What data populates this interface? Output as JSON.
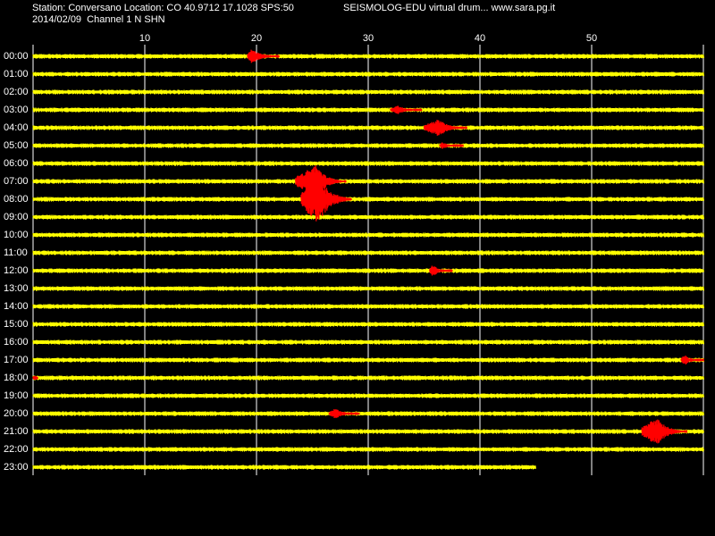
{
  "header": {
    "station_line": "Station: Conversano Location: CO 40.9712 17.1028 SPS:50",
    "date_line": "2014/02/09  Channel 1 N SHN",
    "app_title": "SEISMOLOG-EDU virtual drum... www.sara.pg.it"
  },
  "minute_axis": {
    "ticks": [
      10,
      20,
      30,
      40,
      50
    ],
    "range": [
      0,
      60
    ]
  },
  "hour_rows": [
    "00:00",
    "01:00",
    "02:00",
    "03:00",
    "04:00",
    "05:00",
    "06:00",
    "07:00",
    "08:00",
    "09:00",
    "10:00",
    "11:00",
    "12:00",
    "13:00",
    "14:00",
    "15:00",
    "16:00",
    "17:00",
    "18:00",
    "19:00",
    "20:00",
    "21:00",
    "22:00",
    "23:00"
  ],
  "trace_end_last_row_minute": 45,
  "events": [
    {
      "hour": 0,
      "start": 19.2,
      "end": 22.0,
      "peak": 19.6,
      "amp": 9
    },
    {
      "hour": 3,
      "start": 32.0,
      "end": 34.8,
      "peak": 32.6,
      "amp": 5
    },
    {
      "hour": 4,
      "start": 35.0,
      "end": 38.8,
      "peak": 36.3,
      "amp": 10
    },
    {
      "hour": 5,
      "start": 36.4,
      "end": 38.5,
      "peak": 36.6,
      "amp": 4
    },
    {
      "hour": 7,
      "start": 23.5,
      "end": 28.0,
      "peak": 25.3,
      "amp": 18
    },
    {
      "hour": 8,
      "start": 24.0,
      "end": 28.5,
      "peak": 25.5,
      "amp": 28
    },
    {
      "hour": 12,
      "start": 35.5,
      "end": 37.5,
      "peak": 35.7,
      "amp": 7
    },
    {
      "hour": 17,
      "start": 58.0,
      "end": 60.0,
      "peak": 58.3,
      "amp": 6
    },
    {
      "hour": 18,
      "start": 0.0,
      "end": 0.4,
      "peak": 0.1,
      "amp": 3
    },
    {
      "hour": 20,
      "start": 26.5,
      "end": 29.2,
      "peak": 27.0,
      "amp": 6
    },
    {
      "hour": 21,
      "start": 54.5,
      "end": 58.5,
      "peak": 55.8,
      "amp": 16
    }
  ],
  "colors": {
    "background": "#000000",
    "trace": "#ffff00",
    "event": "#ff0000",
    "grid": "#ffffff",
    "text": "#ffffff"
  }
}
